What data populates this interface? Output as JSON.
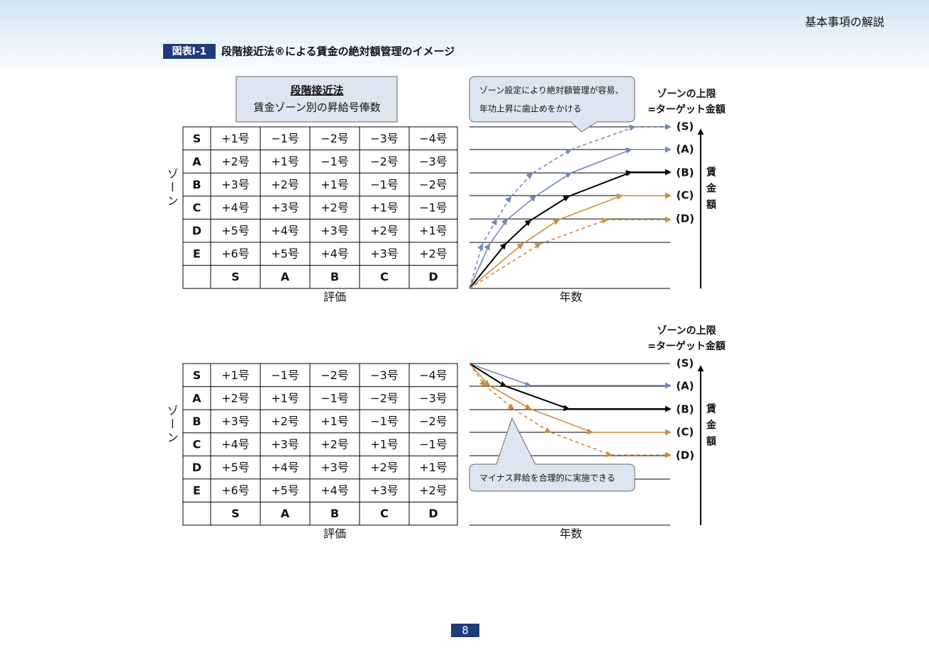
{
  "header": {
    "section": "基本事項の解説"
  },
  "figure": {
    "label": "図表Ⅰ-1",
    "title": "段階接近法®による賃金の絶対額管理のイメージ"
  },
  "legend_box": {
    "title": "段階接近法",
    "subtitle": "賃金ゾーン別の昇給号俸数"
  },
  "tables": [
    {
      "row_axis": "ゾーン",
      "col_axis": "評価",
      "columns": [
        "S",
        "A",
        "B",
        "C",
        "D"
      ],
      "rows": [
        [
          "S",
          "+1号",
          "−1号",
          "−2号",
          "−3号",
          "−4号"
        ],
        [
          "A",
          "+2号",
          "+1号",
          "−1号",
          "−2号",
          "−3号"
        ],
        [
          "B",
          "+3号",
          "+2号",
          "+1号",
          "−1号",
          "−2号"
        ],
        [
          "C",
          "+4号",
          "+3号",
          "+2号",
          "+1号",
          "−1号"
        ],
        [
          "D",
          "+5号",
          "+4号",
          "+3号",
          "+2号",
          "+1号"
        ],
        [
          "E",
          "+6号",
          "+5号",
          "+4号",
          "+3号",
          "+2号"
        ]
      ]
    },
    {
      "row_axis": "ゾーン",
      "col_axis": "評価",
      "columns": [
        "S",
        "A",
        "B",
        "C",
        "D"
      ],
      "rows": [
        [
          "S",
          "+1号",
          "−1号",
          "−2号",
          "−3号",
          "−4号"
        ],
        [
          "A",
          "+2号",
          "+1号",
          "−1号",
          "−2号",
          "−3号"
        ],
        [
          "B",
          "+3号",
          "+2号",
          "+1号",
          "−1号",
          "−2号"
        ],
        [
          "C",
          "+4号",
          "+3号",
          "+2号",
          "+1号",
          "−1号"
        ],
        [
          "D",
          "+5号",
          "+4号",
          "+3号",
          "+2号",
          "+1号"
        ],
        [
          "E",
          "+6号",
          "+5号",
          "+4号",
          "+3号",
          "+2号"
        ]
      ]
    }
  ],
  "diagrams": [
    {
      "zone_title": [
        "ゾーンの上限",
        "=ターゲット金額"
      ],
      "zones": [
        "(S)",
        "(A)",
        "(B)",
        "(C)",
        "(D)"
      ],
      "y_axis": "賃金額",
      "x_axis": "年数",
      "callout": [
        "ゾーン設定により絶対額管理が容易、",
        "年功上昇に歯止めをかける"
      ]
    },
    {
      "zone_title": [
        "ゾーンの上限",
        "=ターゲット金額"
      ],
      "zones": [
        "(S)",
        "(A)",
        "(B)",
        "(C)",
        "(D)"
      ],
      "y_axis": "賃金額",
      "x_axis": "年数",
      "callout": [
        "マイナス昇給を合理的に実施できる"
      ]
    }
  ],
  "page_number": "8"
}
